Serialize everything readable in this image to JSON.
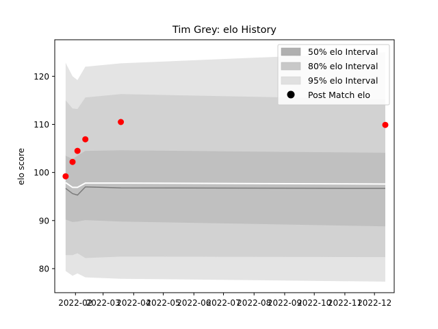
{
  "chart_data": {
    "type": "line",
    "title": "Tim Grey: elo History",
    "xlabel": "",
    "ylabel": "elo score",
    "x_axis_type": "date",
    "xlim": [
      "2022-01-11",
      "2022-12-21"
    ],
    "ylim": [
      75.0,
      127.6
    ],
    "xticks": [
      "2022-02",
      "2022-03",
      "2022-04",
      "2022-05",
      "2022-06",
      "2022-07",
      "2022-08",
      "2022-09",
      "2022-10",
      "2022-11",
      "2022-12"
    ],
    "yticks": [
      80,
      90,
      100,
      110,
      120
    ],
    "grid": false,
    "legend": {
      "placement": "top-right",
      "entries": [
        "50% elo Interval",
        "80% elo Interval",
        "95% elo Interval",
        "Post Match elo"
      ]
    },
    "x": [
      "2022-01-22",
      "2022-01-29",
      "2022-02-03",
      "2022-02-11",
      "2022-03-19",
      "2022-12-12"
    ],
    "mean": [
      97.9,
      96.9,
      96.9,
      97.8,
      97.8,
      97.6
    ],
    "bands": [
      {
        "name": "95% elo Interval",
        "color": "#e4e4e4",
        "upper": [
          122.8,
          120.0,
          119.2,
          122.0,
          122.7,
          125.0
        ],
        "lower": [
          79.5,
          78.5,
          79.0,
          78.2,
          77.9,
          77.3
        ]
      },
      {
        "name": "80% elo Interval",
        "color": "#d2d2d2",
        "upper": [
          115.0,
          113.3,
          113.2,
          115.6,
          116.3,
          115.2
        ],
        "lower": [
          82.8,
          82.8,
          83.2,
          82.2,
          82.5,
          82.4
        ]
      },
      {
        "name": "50% elo Interval",
        "color": "#c0c0c0",
        "upper": [
          103.5,
          102.8,
          103.5,
          104.5,
          104.6,
          104.1
        ],
        "lower": [
          90.2,
          89.7,
          89.8,
          90.1,
          89.8,
          88.8
        ]
      }
    ],
    "dark_line": [
      96.7,
      95.6,
      95.3,
      97.0,
      96.8,
      96.7
    ],
    "points": {
      "name": "Post Match elo",
      "color": "#ff0000",
      "x": [
        "2022-01-22",
        "2022-01-29",
        "2022-02-03",
        "2022-02-11",
        "2022-03-19",
        "2022-12-12"
      ],
      "y": [
        99.2,
        102.2,
        104.5,
        106.9,
        110.5,
        109.9
      ]
    }
  }
}
